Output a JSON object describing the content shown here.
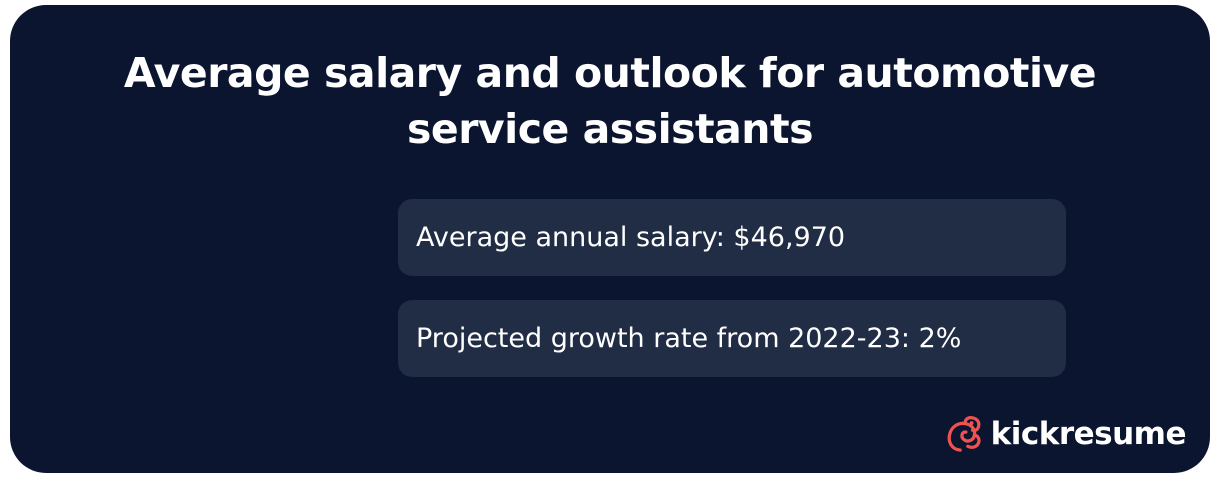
{
  "title_line1": "Average salary and outlook for automotive",
  "title_line2": "service assistants",
  "stats": [
    {
      "text": "Average annual salary: $46,970"
    },
    {
      "text": "Projected growth rate from 2022-23: 2%"
    }
  ],
  "brand": {
    "name": "kickresume",
    "logo_icon": "kickresume-chameleon-logo",
    "logo_color": "#f0524f"
  },
  "colors": {
    "background": "#0b1530",
    "stat_box": "#212c45",
    "text": "#ffffff"
  }
}
